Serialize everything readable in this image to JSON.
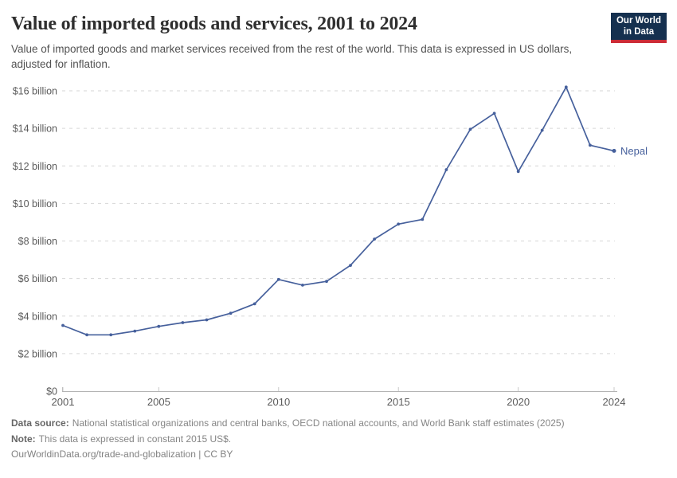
{
  "header": {
    "title": "Value of imported goods and services, 2001 to 2024",
    "subtitle": "Value of imported goods and market services received from the rest of the world. This data is expressed in US dollars, adjusted for inflation."
  },
  "logo": {
    "line1": "Our World",
    "line2": "in Data"
  },
  "chart_data": {
    "type": "line",
    "title": "Value of imported goods and services, 2001 to 2024",
    "x": [
      2001,
      2002,
      2003,
      2004,
      2005,
      2006,
      2007,
      2008,
      2009,
      2010,
      2011,
      2012,
      2013,
      2014,
      2015,
      2016,
      2017,
      2018,
      2019,
      2020,
      2021,
      2022,
      2023,
      2024
    ],
    "series": [
      {
        "name": "Nepal",
        "unit": "billion US$ (constant 2015)",
        "values": [
          3.5,
          3.0,
          3.0,
          3.2,
          3.45,
          3.65,
          3.8,
          4.15,
          4.65,
          5.95,
          5.65,
          5.85,
          6.7,
          8.1,
          8.9,
          9.15,
          11.8,
          13.95,
          14.8,
          11.7,
          13.9,
          16.2,
          13.1,
          12.8
        ]
      }
    ],
    "end_label": "Nepal",
    "xlabel": "",
    "ylabel": "",
    "xlim": [
      2001,
      2024
    ],
    "ylim": [
      0,
      16
    ],
    "grid": "horizontal-dashed",
    "legend_position": "line-end",
    "x_ticks": [
      {
        "value": 2001,
        "label": "2001"
      },
      {
        "value": 2005,
        "label": "2005"
      },
      {
        "value": 2010,
        "label": "2010"
      },
      {
        "value": 2015,
        "label": "2015"
      },
      {
        "value": 2020,
        "label": "2020"
      },
      {
        "value": 2024,
        "label": "2024"
      }
    ],
    "y_ticks": [
      {
        "value": 0,
        "label": "$0"
      },
      {
        "value": 2,
        "label": "$2 billion"
      },
      {
        "value": 4,
        "label": "$4 billion"
      },
      {
        "value": 6,
        "label": "$6 billion"
      },
      {
        "value": 8,
        "label": "$8 billion"
      },
      {
        "value": 10,
        "label": "$10 billion"
      },
      {
        "value": 12,
        "label": "$12 billion"
      },
      {
        "value": 14,
        "label": "$14 billion"
      },
      {
        "value": 16,
        "label": "$16 billion"
      }
    ]
  },
  "footer": {
    "data_source_label": "Data source:",
    "data_source": "National statistical organizations and central banks, OECD national accounts, and World Bank staff estimates (2025)",
    "note_label": "Note:",
    "note": "This data is expressed in constant 2015 US$.",
    "link": "OurWorldinData.org/trade-and-globalization | CC BY"
  },
  "colors": {
    "line": "#46609c",
    "grid": "#d6d6d6",
    "axis": "#b3b3b3",
    "tick": "#c9c9c9",
    "tick_label": "#5b5b5b",
    "logo_bg": "#15304f",
    "logo_accent": "#cc2b36"
  }
}
